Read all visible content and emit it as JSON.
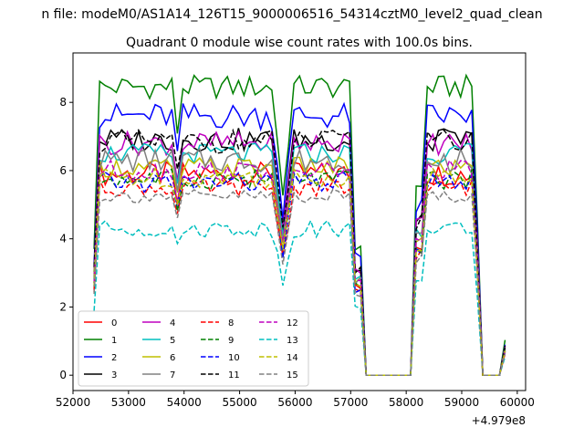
{
  "chart_data": {
    "type": "line",
    "suptitle": "n file: modeM0/AS1A14_126T15_9000006516_54314cztM0_level2_quad_clean",
    "title": "Quadrant 0 module wise count rates with 100.0s bins.",
    "xlabel": "",
    "ylabel": "",
    "x_offset_label": "+4.979e8",
    "xlim": [
      52000,
      60150
    ],
    "ylim": [
      -0.45,
      9.45
    ],
    "xticks": [
      52000,
      53000,
      54000,
      55000,
      56000,
      57000,
      58000,
      59000,
      60000
    ],
    "xtick_labels": [
      "52000",
      "53000",
      "54000",
      "55000",
      "56000",
      "57000",
      "58000",
      "59000",
      "60000"
    ],
    "yticks": [
      0,
      2,
      4,
      6,
      8
    ],
    "ytick_labels": [
      "0",
      "2",
      "4",
      "6",
      "8"
    ],
    "grid": false,
    "legend": {
      "position": "lower-left",
      "ncol": 4
    },
    "x": [
      52380,
      52480,
      52580,
      52680,
      52780,
      52880,
      52980,
      53080,
      53180,
      53280,
      53380,
      53480,
      53580,
      53680,
      53780,
      53880,
      53980,
      54080,
      54180,
      54280,
      54380,
      54480,
      54580,
      54680,
      54780,
      54880,
      54980,
      55080,
      55180,
      55280,
      55380,
      55480,
      55580,
      55680,
      55780,
      55880,
      55980,
      56080,
      56180,
      56280,
      56380,
      56480,
      56580,
      56680,
      56780,
      56880,
      56980,
      57080,
      57180,
      57280,
      57380,
      57480,
      57580,
      57680,
      57780,
      57880,
      57980,
      58080,
      58180,
      58280,
      58380,
      58480,
      58580,
      58680,
      58780,
      58880,
      58980,
      59080,
      59180,
      59280,
      59380,
      59480,
      59580,
      59680,
      59780
    ],
    "series": [
      {
        "name": "0",
        "color": "#ff0000",
        "dash": "solid",
        "level": 5.9,
        "amp": 0.35,
        "phase": 0
      },
      {
        "name": "1",
        "color": "#008000",
        "dash": "solid",
        "level": 8.45,
        "amp": 0.35,
        "phase": 1
      },
      {
        "name": "2",
        "color": "#0000ff",
        "dash": "solid",
        "level": 7.6,
        "amp": 0.4,
        "phase": 2
      },
      {
        "name": "3",
        "color": "#000000",
        "dash": "solid",
        "level": 6.9,
        "amp": 0.35,
        "phase": 3
      },
      {
        "name": "4",
        "color": "#bf00bf",
        "dash": "solid",
        "level": 6.8,
        "amp": 0.35,
        "phase": 4
      },
      {
        "name": "5",
        "color": "#00bfbf",
        "dash": "solid",
        "level": 6.5,
        "amp": 0.3,
        "phase": 5
      },
      {
        "name": "6",
        "color": "#bfbf00",
        "dash": "solid",
        "level": 6.1,
        "amp": 0.3,
        "phase": 6
      },
      {
        "name": "7",
        "color": "#808080",
        "dash": "solid",
        "level": 6.3,
        "amp": 0.35,
        "phase": 7
      },
      {
        "name": "8",
        "color": "#ff0000",
        "dash": "dashed",
        "level": 5.5,
        "amp": 0.25,
        "phase": 8
      },
      {
        "name": "9",
        "color": "#008000",
        "dash": "dashed",
        "level": 5.75,
        "amp": 0.3,
        "phase": 9
      },
      {
        "name": "10",
        "color": "#0000ff",
        "dash": "dashed",
        "level": 5.65,
        "amp": 0.3,
        "phase": 10
      },
      {
        "name": "11",
        "color": "#000000",
        "dash": "dashed",
        "level": 6.85,
        "amp": 0.35,
        "phase": 11
      },
      {
        "name": "12",
        "color": "#bf00bf",
        "dash": "dashed",
        "level": 6.0,
        "amp": 0.3,
        "phase": 12
      },
      {
        "name": "13",
        "color": "#00bfbf",
        "dash": "dashed",
        "level": 4.3,
        "amp": 0.25,
        "phase": 13
      },
      {
        "name": "14",
        "color": "#bfbf00",
        "dash": "dashed",
        "level": 5.8,
        "amp": 0.3,
        "phase": 14
      },
      {
        "name": "15",
        "color": "#808080",
        "dash": "dashed",
        "level": 5.25,
        "amp": 0.2,
        "phase": 15
      }
    ]
  }
}
